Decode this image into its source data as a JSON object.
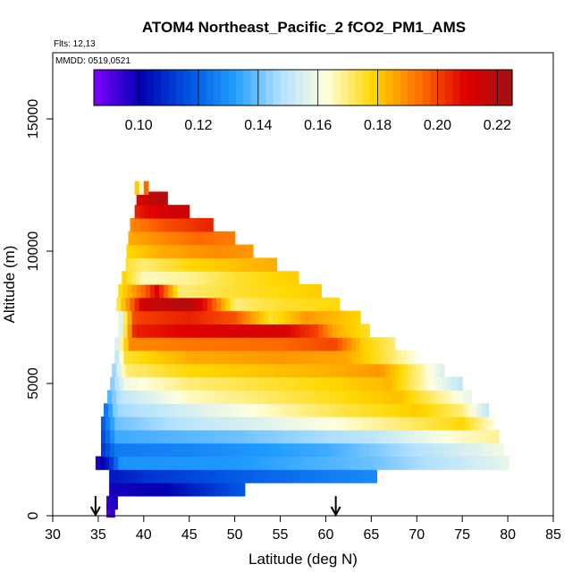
{
  "chart_data": {
    "type": "heatmap",
    "title": "ATOM4 Northeast_Pacific_2 fCO2_PM1_AMS",
    "notes": {
      "flights": "Flts: 12,13",
      "mmdd": "MMDD: 0519,0521"
    },
    "xlabel": "Latitude (deg N)",
    "ylabel": "Altitude (m)",
    "xlim": [
      30,
      85
    ],
    "ylim": [
      0,
      17500
    ],
    "x_ticks": [
      30,
      35,
      40,
      45,
      50,
      55,
      60,
      65,
      70,
      75,
      80,
      85
    ],
    "y_ticks": [
      0,
      5000,
      10000,
      15000
    ],
    "colorbar": {
      "range": [
        0.085,
        0.225
      ],
      "ticks": [
        0.1,
        0.12,
        0.14,
        0.16,
        0.18,
        0.2,
        0.22
      ],
      "tick_labels": [
        "0.10",
        "0.12",
        "0.14",
        "0.16",
        "0.18",
        "0.20",
        "0.22"
      ],
      "colors": [
        "#8000ff",
        "#0000b0",
        "#0050e0",
        "#1e9cff",
        "#b0e0ff",
        "#ffffe0",
        "#ffd700",
        "#ff7000",
        "#e00000",
        "#a01010"
      ]
    },
    "profile_markers_lat": [
      34.7,
      61.1
    ],
    "rows": [
      {
        "alt": 200,
        "lat_min": 35.9,
        "lat_max": 36.8,
        "anchors": [
          [
            35.9,
            0.09
          ],
          [
            36.8,
            0.095
          ]
        ]
      },
      {
        "alt": 500,
        "lat_min": 35.9,
        "lat_max": 37.1,
        "anchors": [
          [
            35.9,
            0.093
          ],
          [
            37.1,
            0.1
          ]
        ]
      },
      {
        "alt": 1000,
        "lat_min": 36.2,
        "lat_max": 51.1,
        "anchors": [
          [
            36.2,
            0.098
          ],
          [
            42,
            0.1
          ],
          [
            47,
            0.11
          ],
          [
            51.1,
            0.118
          ]
        ]
      },
      {
        "alt": 1500,
        "lat_min": 36.2,
        "lat_max": 65.6,
        "anchors": [
          [
            36.2,
            0.105
          ],
          [
            40,
            0.11
          ],
          [
            50,
            0.118
          ],
          [
            60,
            0.125
          ],
          [
            65.6,
            0.128
          ]
        ]
      },
      {
        "alt": 2000,
        "lat_min": 34.7,
        "lat_max": 80.1,
        "anchors": [
          [
            34.7,
            0.095
          ],
          [
            36,
            0.105
          ],
          [
            37.5,
            0.13
          ],
          [
            50,
            0.131
          ],
          [
            65,
            0.14
          ],
          [
            75,
            0.152
          ],
          [
            80.1,
            0.158
          ]
        ]
      },
      {
        "alt": 2500,
        "lat_min": 35.3,
        "lat_max": 79.5,
        "anchors": [
          [
            35.3,
            0.11
          ],
          [
            37,
            0.125
          ],
          [
            45,
            0.127
          ],
          [
            60,
            0.135
          ],
          [
            70,
            0.148
          ],
          [
            79.5,
            0.16
          ]
        ]
      },
      {
        "alt": 3000,
        "lat_min": 35.3,
        "lat_max": 79.0,
        "anchors": [
          [
            35.3,
            0.112
          ],
          [
            37,
            0.135
          ],
          [
            50,
            0.14
          ],
          [
            65,
            0.15
          ],
          [
            75,
            0.165
          ],
          [
            79,
            0.168
          ]
        ]
      },
      {
        "alt": 3500,
        "lat_min": 35.3,
        "lat_max": 78.6,
        "anchors": [
          [
            35.3,
            0.115
          ],
          [
            37,
            0.14
          ],
          [
            45,
            0.15
          ],
          [
            60,
            0.162
          ],
          [
            70,
            0.172
          ],
          [
            75,
            0.178
          ],
          [
            78.6,
            0.162
          ]
        ]
      },
      {
        "alt": 4000,
        "lat_min": 35.6,
        "lat_max": 77.9,
        "anchors": [
          [
            35.6,
            0.12
          ],
          [
            37,
            0.145
          ],
          [
            45,
            0.155
          ],
          [
            60,
            0.172
          ],
          [
            70,
            0.18
          ],
          [
            75,
            0.17
          ],
          [
            77.9,
            0.15
          ]
        ]
      },
      {
        "alt": 4500,
        "lat_min": 36.0,
        "lat_max": 76.0,
        "anchors": [
          [
            36,
            0.135
          ],
          [
            37.5,
            0.15
          ],
          [
            45,
            0.165
          ],
          [
            60,
            0.176
          ],
          [
            68,
            0.182
          ],
          [
            72,
            0.17
          ],
          [
            76,
            0.158
          ]
        ]
      },
      {
        "alt": 5000,
        "lat_min": 36.3,
        "lat_max": 75.0,
        "anchors": [
          [
            36.3,
            0.14
          ],
          [
            38,
            0.16
          ],
          [
            45,
            0.17
          ],
          [
            60,
            0.178
          ],
          [
            67,
            0.183
          ],
          [
            71,
            0.165
          ],
          [
            75,
            0.15
          ]
        ]
      },
      {
        "alt": 5500,
        "lat_min": 36.5,
        "lat_max": 73.0,
        "anchors": [
          [
            36.5,
            0.14
          ],
          [
            38,
            0.17
          ],
          [
            45,
            0.178
          ],
          [
            60,
            0.184
          ],
          [
            66,
            0.188
          ],
          [
            70,
            0.17
          ],
          [
            73,
            0.155
          ]
        ]
      },
      {
        "alt": 6000,
        "lat_min": 36.8,
        "lat_max": 70.0,
        "anchors": [
          [
            36.8,
            0.145
          ],
          [
            38,
            0.175
          ],
          [
            45,
            0.185
          ],
          [
            55,
            0.188
          ],
          [
            62,
            0.186
          ],
          [
            66,
            0.175
          ],
          [
            70,
            0.162
          ]
        ]
      },
      {
        "alt": 6500,
        "lat_min": 36.8,
        "lat_max": 67.6,
        "anchors": [
          [
            36.8,
            0.15
          ],
          [
            38.5,
            0.19
          ],
          [
            45,
            0.193
          ],
          [
            55,
            0.195
          ],
          [
            61,
            0.2
          ],
          [
            64,
            0.18
          ],
          [
            67.6,
            0.17
          ]
        ]
      },
      {
        "alt": 7000,
        "lat_min": 37.2,
        "lat_max": 64.8,
        "anchors": [
          [
            37.2,
            0.15
          ],
          [
            39,
            0.205
          ],
          [
            45,
            0.21
          ],
          [
            55,
            0.212
          ],
          [
            59,
            0.2
          ],
          [
            61,
            0.185
          ],
          [
            64.8,
            0.175
          ]
        ]
      },
      {
        "alt": 7500,
        "lat_min": 37.2,
        "lat_max": 63.8,
        "anchors": [
          [
            37.2,
            0.15
          ],
          [
            39,
            0.2
          ],
          [
            45,
            0.205
          ],
          [
            50,
            0.198
          ],
          [
            54,
            0.175
          ],
          [
            58,
            0.188
          ],
          [
            63.8,
            0.178
          ]
        ]
      },
      {
        "alt": 8000,
        "lat_min": 37.0,
        "lat_max": 61.5,
        "anchors": [
          [
            37,
            0.17
          ],
          [
            40,
            0.215
          ],
          [
            45,
            0.22
          ],
          [
            47,
            0.205
          ],
          [
            50,
            0.17
          ],
          [
            55,
            0.175
          ],
          [
            61.5,
            0.178
          ]
        ]
      },
      {
        "alt": 8500,
        "lat_min": 37.2,
        "lat_max": 59.5,
        "anchors": [
          [
            37.2,
            0.175
          ],
          [
            40,
            0.195
          ],
          [
            41.5,
            0.21
          ],
          [
            44,
            0.17
          ],
          [
            50,
            0.175
          ],
          [
            59.5,
            0.18
          ]
        ]
      },
      {
        "alt": 9000,
        "lat_min": 37.6,
        "lat_max": 57.0,
        "anchors": [
          [
            37.6,
            0.18
          ],
          [
            40,
            0.165
          ],
          [
            45,
            0.168
          ],
          [
            50,
            0.175
          ],
          [
            57,
            0.18
          ]
        ]
      },
      {
        "alt": 9500,
        "lat_min": 38.0,
        "lat_max": 54.6,
        "anchors": [
          [
            38,
            0.175
          ],
          [
            40,
            0.17
          ],
          [
            45,
            0.178
          ],
          [
            54.6,
            0.185
          ]
        ]
      },
      {
        "alt": 10000,
        "lat_min": 38.1,
        "lat_max": 52.0,
        "anchors": [
          [
            38.1,
            0.178
          ],
          [
            42,
            0.185
          ],
          [
            48,
            0.19
          ],
          [
            52,
            0.188
          ]
        ]
      },
      {
        "alt": 10500,
        "lat_min": 38.3,
        "lat_max": 50.0,
        "anchors": [
          [
            38.3,
            0.185
          ],
          [
            42,
            0.19
          ],
          [
            46,
            0.195
          ],
          [
            50,
            0.192
          ]
        ]
      },
      {
        "alt": 11000,
        "lat_min": 38.5,
        "lat_max": 47.6,
        "anchors": [
          [
            38.5,
            0.19
          ],
          [
            42,
            0.198
          ],
          [
            47.6,
            0.205
          ]
        ]
      },
      {
        "alt": 11500,
        "lat_min": 39.0,
        "lat_max": 45.0,
        "anchors": [
          [
            39,
            0.205
          ],
          [
            42,
            0.212
          ],
          [
            45,
            0.215
          ]
        ]
      },
      {
        "alt": 12000,
        "lat_min": 39.2,
        "lat_max": 42.6,
        "anchors": [
          [
            39.2,
            0.21
          ],
          [
            41,
            0.218
          ],
          [
            42.6,
            0.22
          ]
        ]
      },
      {
        "alt": 12400,
        "lat_min": 39.0,
        "lat_max": 40.5,
        "anchors": [
          [
            39,
            0.21
          ],
          [
            39.5,
            0.15
          ],
          [
            40,
            0.18
          ],
          [
            40.5,
            0.21
          ]
        ]
      }
    ]
  }
}
